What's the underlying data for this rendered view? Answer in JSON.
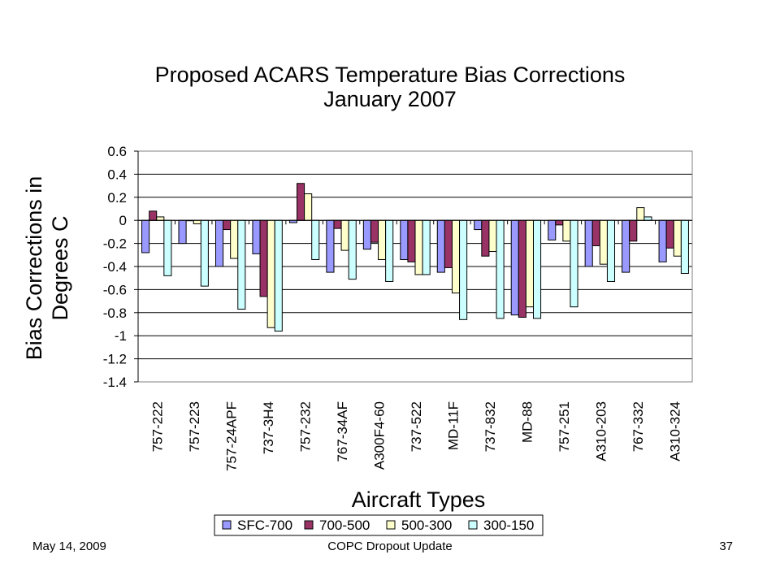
{
  "slide": {
    "title_line1": "Proposed ACARS Temperature Bias Corrections",
    "title_line2": "January 2007",
    "footer_date": "May 14, 2009",
    "footer_center": "COPC Dropout Update",
    "footer_page": "37"
  },
  "chart_data": {
    "type": "bar",
    "title": "Proposed ACARS Temperature Bias Corrections January 2007",
    "xlabel": "Aircraft Types",
    "ylabel": "Bias Corrections in Degrees C",
    "ylim": [
      -1.4,
      0.6
    ],
    "yticks": [
      "0.6",
      "0.4",
      "0.2",
      "0",
      "-0.2",
      "-0.4",
      "-0.6",
      "-0.8",
      "-1",
      "-1.2",
      "-1.4"
    ],
    "ytick_values": [
      0.6,
      0.4,
      0.2,
      0,
      -0.2,
      -0.4,
      -0.6,
      -0.8,
      -1,
      -1.2,
      -1.4
    ],
    "grid": true,
    "legend_position": "bottom",
    "categories": [
      "757-222",
      "757-223",
      "757-24APF",
      "737-3H4",
      "757-232",
      "767-34AF",
      "A300F4-60",
      "737-522",
      "MD-11F",
      "737-832",
      "MD-88",
      "757-251",
      "A310-203",
      "767-332",
      "A310-324"
    ],
    "series": [
      {
        "name": "SFC-700",
        "color": "#9999ff",
        "values": [
          -0.28,
          -0.2,
          -0.4,
          -0.29,
          -0.02,
          -0.45,
          -0.25,
          -0.34,
          -0.45,
          -0.08,
          -0.82,
          -0.17,
          -0.4,
          -0.45,
          -0.36
        ]
      },
      {
        "name": "700-500",
        "color": "#993366",
        "values": [
          0.08,
          0.0,
          -0.08,
          -0.66,
          0.32,
          -0.07,
          -0.19,
          -0.36,
          -0.41,
          -0.31,
          -0.84,
          -0.04,
          -0.22,
          -0.18,
          -0.24
        ]
      },
      {
        "name": "500-300",
        "color": "#ffffcc",
        "values": [
          0.03,
          -0.03,
          -0.33,
          -0.93,
          0.23,
          -0.26,
          -0.34,
          -0.47,
          -0.63,
          -0.27,
          -0.75,
          -0.18,
          -0.38,
          0.11,
          -0.31
        ]
      },
      {
        "name": "300-150",
        "color": "#ccffff",
        "values": [
          -0.48,
          -0.57,
          -0.77,
          -0.96,
          -0.34,
          -0.51,
          -0.53,
          -0.47,
          -0.86,
          -0.85,
          -0.85,
          -0.75,
          -0.53,
          0.03,
          -0.46
        ]
      }
    ]
  }
}
